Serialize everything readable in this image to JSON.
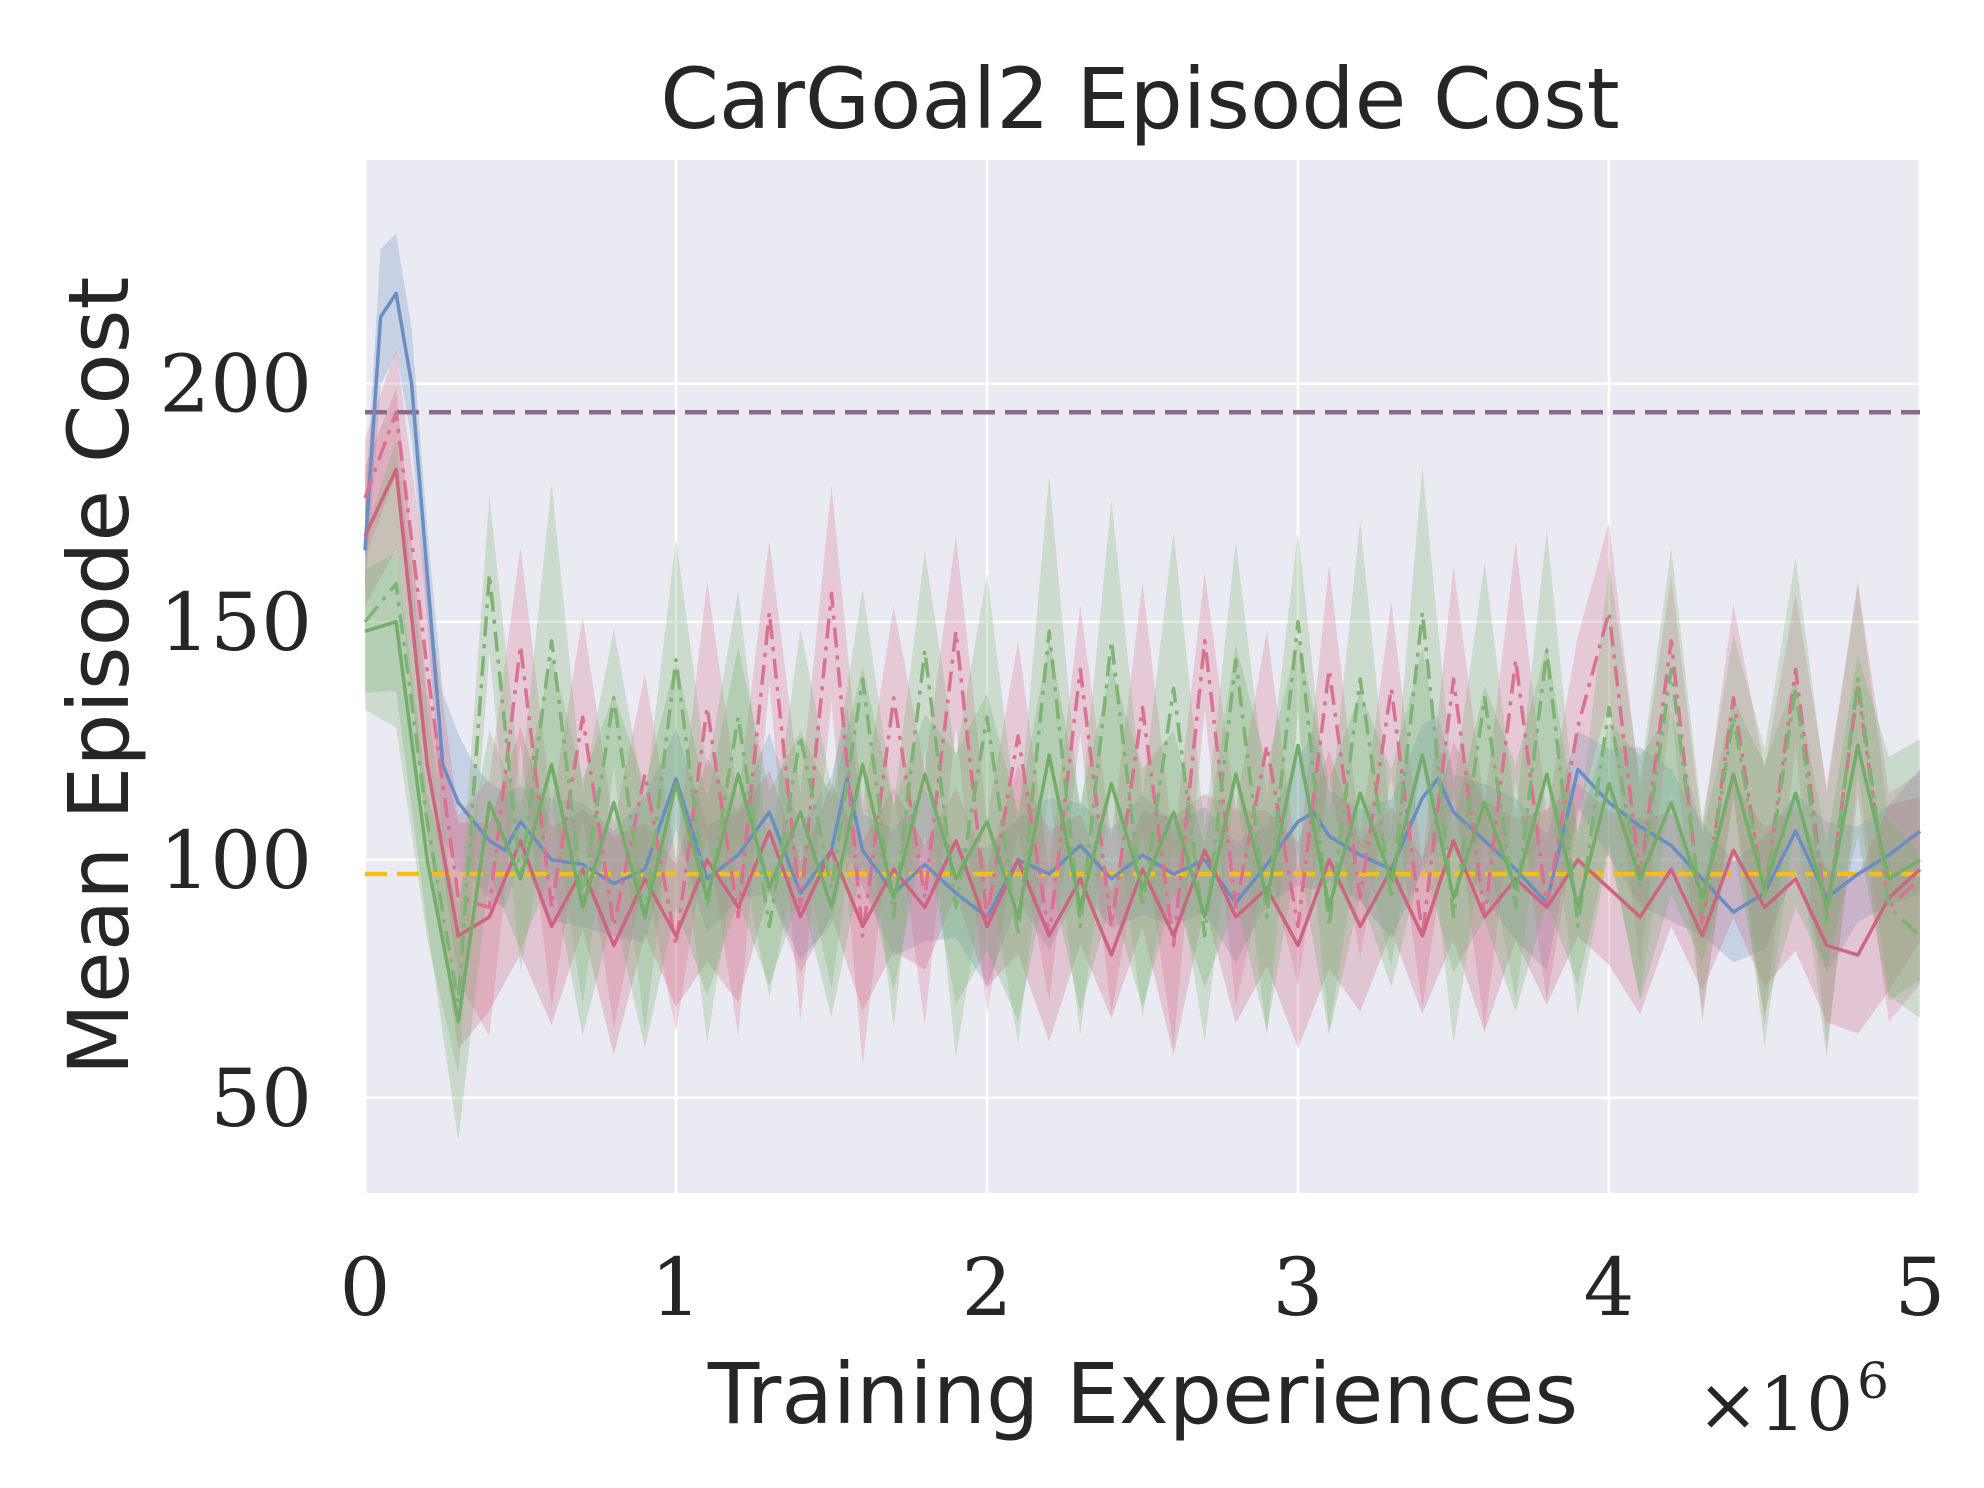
{
  "chart_data": {
    "type": "line",
    "title": "CarGoal2 Episode Cost",
    "xlabel": "Training Experiences",
    "ylabel": "Mean Episode Cost",
    "x_offset_label": "×10",
    "x_offset_exponent": "6",
    "xlim": [
      0,
      5
    ],
    "ylim": [
      30,
      247
    ],
    "xticks": [
      0,
      1,
      2,
      3,
      4,
      5
    ],
    "xtick_labels": [
      "0",
      "1",
      "2",
      "3",
      "4",
      "5"
    ],
    "yticks": [
      50,
      100,
      150,
      200
    ],
    "ytick_labels": [
      "50",
      "100",
      "150",
      "200"
    ],
    "grid": true,
    "background": "#EAEAF2",
    "reference_lines": [
      {
        "name": "purple-dashed-reference",
        "y": 194,
        "color": "#8C6A8E",
        "style": "dashed"
      },
      {
        "name": "yellow-dashed-reference",
        "y": 97,
        "color": "#F2BE1A",
        "style": "dashed"
      }
    ],
    "series": [
      {
        "name": "blue-solid",
        "color": "#6A8EC2",
        "style": "solid",
        "x": [
          0,
          0.05,
          0.1,
          0.15,
          0.2,
          0.25,
          0.3,
          0.35,
          0.4,
          0.45,
          0.5,
          0.6,
          0.7,
          0.8,
          0.9,
          1.0,
          1.1,
          1.2,
          1.3,
          1.4,
          1.5,
          1.55,
          1.6,
          1.7,
          1.8,
          1.9,
          2.0,
          2.1,
          2.2,
          2.3,
          2.4,
          2.5,
          2.6,
          2.7,
          2.8,
          2.9,
          3.0,
          3.05,
          3.1,
          3.2,
          3.3,
          3.4,
          3.45,
          3.5,
          3.6,
          3.7,
          3.8,
          3.9,
          4.0,
          4.1,
          4.2,
          4.3,
          4.4,
          4.5,
          4.6,
          4.7,
          4.8,
          4.9,
          5.0
        ],
        "values": [
          165,
          214,
          219,
          200,
          160,
          120,
          112,
          108,
          104,
          102,
          108,
          100,
          99,
          95,
          98,
          117,
          96,
          101,
          110,
          93,
          102,
          117,
          102,
          93,
          99,
          93,
          88,
          100,
          97,
          103,
          96,
          101,
          97,
          100,
          91,
          99,
          108,
          110,
          105,
          101,
          98,
          113,
          117,
          110,
          104,
          98,
          91,
          119,
          112,
          107,
          103,
          96,
          89,
          93,
          106,
          92,
          97,
          101,
          106
        ],
        "band": 12
      },
      {
        "name": "pink-dashdot",
        "color": "#D97290",
        "style": "dashdot",
        "x": [
          0,
          0.1,
          0.2,
          0.3,
          0.4,
          0.5,
          0.6,
          0.7,
          0.8,
          0.9,
          1.0,
          1.1,
          1.2,
          1.3,
          1.4,
          1.5,
          1.6,
          1.7,
          1.8,
          1.9,
          2.0,
          2.1,
          2.2,
          2.3,
          2.4,
          2.5,
          2.6,
          2.7,
          2.8,
          2.9,
          3.0,
          3.1,
          3.2,
          3.3,
          3.4,
          3.5,
          3.6,
          3.7,
          3.8,
          3.9,
          4.0,
          4.1,
          4.2,
          4.3,
          4.4,
          4.5,
          4.6,
          4.7,
          4.8,
          4.9,
          5.0
        ],
        "values": [
          176,
          194,
          140,
          92,
          90,
          145,
          90,
          130,
          86,
          118,
          82,
          132,
          88,
          152,
          90,
          156,
          84,
          134,
          92,
          148,
          88,
          126,
          84,
          140,
          86,
          132,
          82,
          146,
          90,
          124,
          86,
          140,
          92,
          136,
          84,
          138,
          88,
          142,
          90,
          128,
          152,
          96,
          146,
          86,
          134,
          92,
          140,
          88,
          136,
          90,
          96
        ],
        "band": 20
      },
      {
        "name": "pink-solid",
        "color": "#CC6680",
        "style": "solid",
        "x": [
          0,
          0.1,
          0.2,
          0.3,
          0.4,
          0.5,
          0.6,
          0.7,
          0.8,
          0.9,
          1.0,
          1.1,
          1.2,
          1.3,
          1.4,
          1.5,
          1.6,
          1.7,
          1.8,
          1.9,
          2.0,
          2.1,
          2.2,
          2.3,
          2.4,
          2.5,
          2.6,
          2.7,
          2.8,
          2.9,
          3.0,
          3.1,
          3.2,
          3.3,
          3.4,
          3.5,
          3.6,
          3.7,
          3.8,
          3.9,
          4.0,
          4.1,
          4.2,
          4.3,
          4.4,
          4.5,
          4.6,
          4.7,
          4.8,
          4.9,
          5.0
        ],
        "values": [
          168,
          182,
          120,
          84,
          88,
          104,
          86,
          98,
          82,
          96,
          84,
          100,
          90,
          106,
          88,
          102,
          86,
          98,
          90,
          104,
          86,
          100,
          84,
          96,
          80,
          98,
          84,
          102,
          88,
          94,
          82,
          100,
          86,
          98,
          84,
          104,
          88,
          96,
          90,
          100,
          94,
          88,
          98,
          84,
          102,
          90,
          96,
          82,
          80,
          92,
          98
        ],
        "band": 18
      },
      {
        "name": "green-dashdot",
        "color": "#7FB373",
        "style": "dashdot",
        "x": [
          0,
          0.1,
          0.2,
          0.3,
          0.4,
          0.5,
          0.6,
          0.7,
          0.8,
          0.9,
          1.0,
          1.1,
          1.2,
          1.3,
          1.4,
          1.5,
          1.6,
          1.7,
          1.8,
          1.9,
          2.0,
          2.1,
          2.2,
          2.3,
          2.4,
          2.5,
          2.6,
          2.7,
          2.8,
          2.9,
          3.0,
          3.1,
          3.2,
          3.3,
          3.4,
          3.5,
          3.6,
          3.7,
          3.8,
          3.9,
          4.0,
          4.1,
          4.2,
          4.3,
          4.4,
          4.5,
          4.6,
          4.7,
          4.8,
          4.9,
          5.0
        ],
        "values": [
          150,
          158,
          108,
          70,
          160,
          96,
          146,
          92,
          134,
          88,
          142,
          90,
          130,
          86,
          126,
          94,
          138,
          88,
          144,
          90,
          130,
          84,
          148,
          86,
          146,
          90,
          136,
          84,
          142,
          88,
          150,
          86,
          138,
          92,
          152,
          88,
          134,
          90,
          144,
          86,
          132,
          94,
          140,
          88,
          130,
          92,
          136,
          86,
          138,
          90,
          84
        ],
        "band": 24
      },
      {
        "name": "green-solid",
        "color": "#74AD6A",
        "style": "solid",
        "x": [
          0,
          0.1,
          0.2,
          0.3,
          0.4,
          0.5,
          0.6,
          0.7,
          0.8,
          0.9,
          1.0,
          1.1,
          1.2,
          1.3,
          1.4,
          1.5,
          1.6,
          1.7,
          1.8,
          1.9,
          2.0,
          2.1,
          2.2,
          2.3,
          2.4,
          2.5,
          2.6,
          2.7,
          2.8,
          2.9,
          3.0,
          3.1,
          3.2,
          3.3,
          3.4,
          3.5,
          3.6,
          3.7,
          3.8,
          3.9,
          4.0,
          4.1,
          4.2,
          4.3,
          4.4,
          4.5,
          4.6,
          4.7,
          4.8,
          4.9,
          5.0
        ],
        "values": [
          148,
          150,
          100,
          66,
          112,
          96,
          120,
          90,
          112,
          88,
          116,
          92,
          118,
          94,
          110,
          90,
          120,
          92,
          118,
          96,
          108,
          88,
          122,
          90,
          116,
          94,
          110,
          88,
          118,
          92,
          124,
          90,
          114,
          96,
          122,
          92,
          112,
          94,
          118,
          90,
          116,
          96,
          112,
          92,
          118,
          94,
          114,
          90,
          124,
          96,
          100
        ],
        "band": 20
      }
    ]
  }
}
